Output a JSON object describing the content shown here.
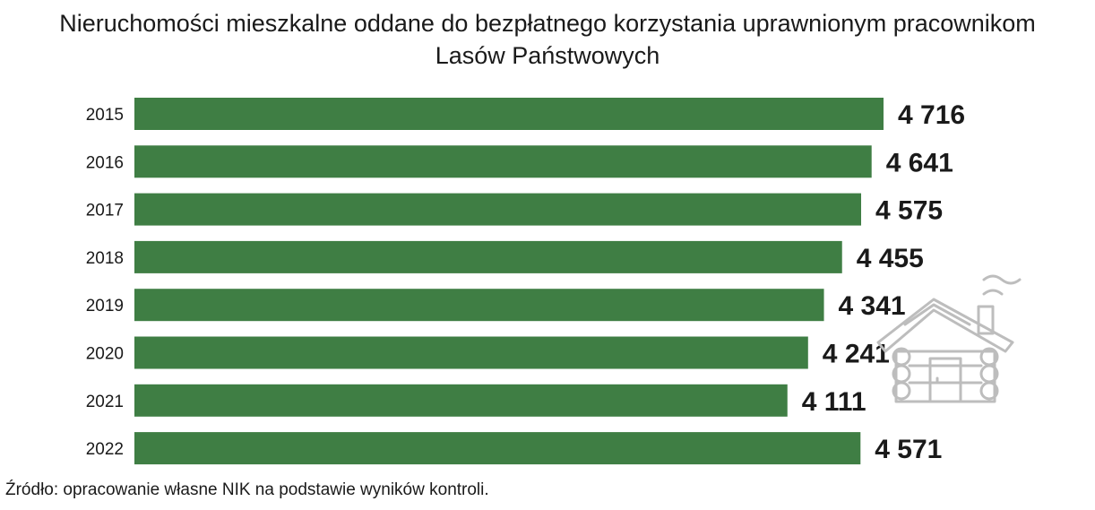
{
  "title_line1": "Nieruchomości mieszkalne oddane do bezpłatnego korzystania uprawnionym pracownikom",
  "title_line2": "Lasów Państwowych",
  "source": "Źródło: opracowanie własne NIK na podstawie wyników kontroli.",
  "colors": {
    "bar": "#3f7e44",
    "icon": "#bdbdbd"
  },
  "icon": "log-cabin-icon",
  "chart_data": {
    "type": "bar",
    "orientation": "horizontal",
    "categories": [
      "2015",
      "2016",
      "2017",
      "2018",
      "2019",
      "2020",
      "2021",
      "2022"
    ],
    "values": [
      4716,
      4641,
      4575,
      4455,
      4341,
      4241,
      4111,
      4571
    ],
    "value_labels": [
      "4 716",
      "4 641",
      "4 575",
      "4 455",
      "4 341",
      "4 241",
      "4 111",
      "4 571"
    ]
  }
}
